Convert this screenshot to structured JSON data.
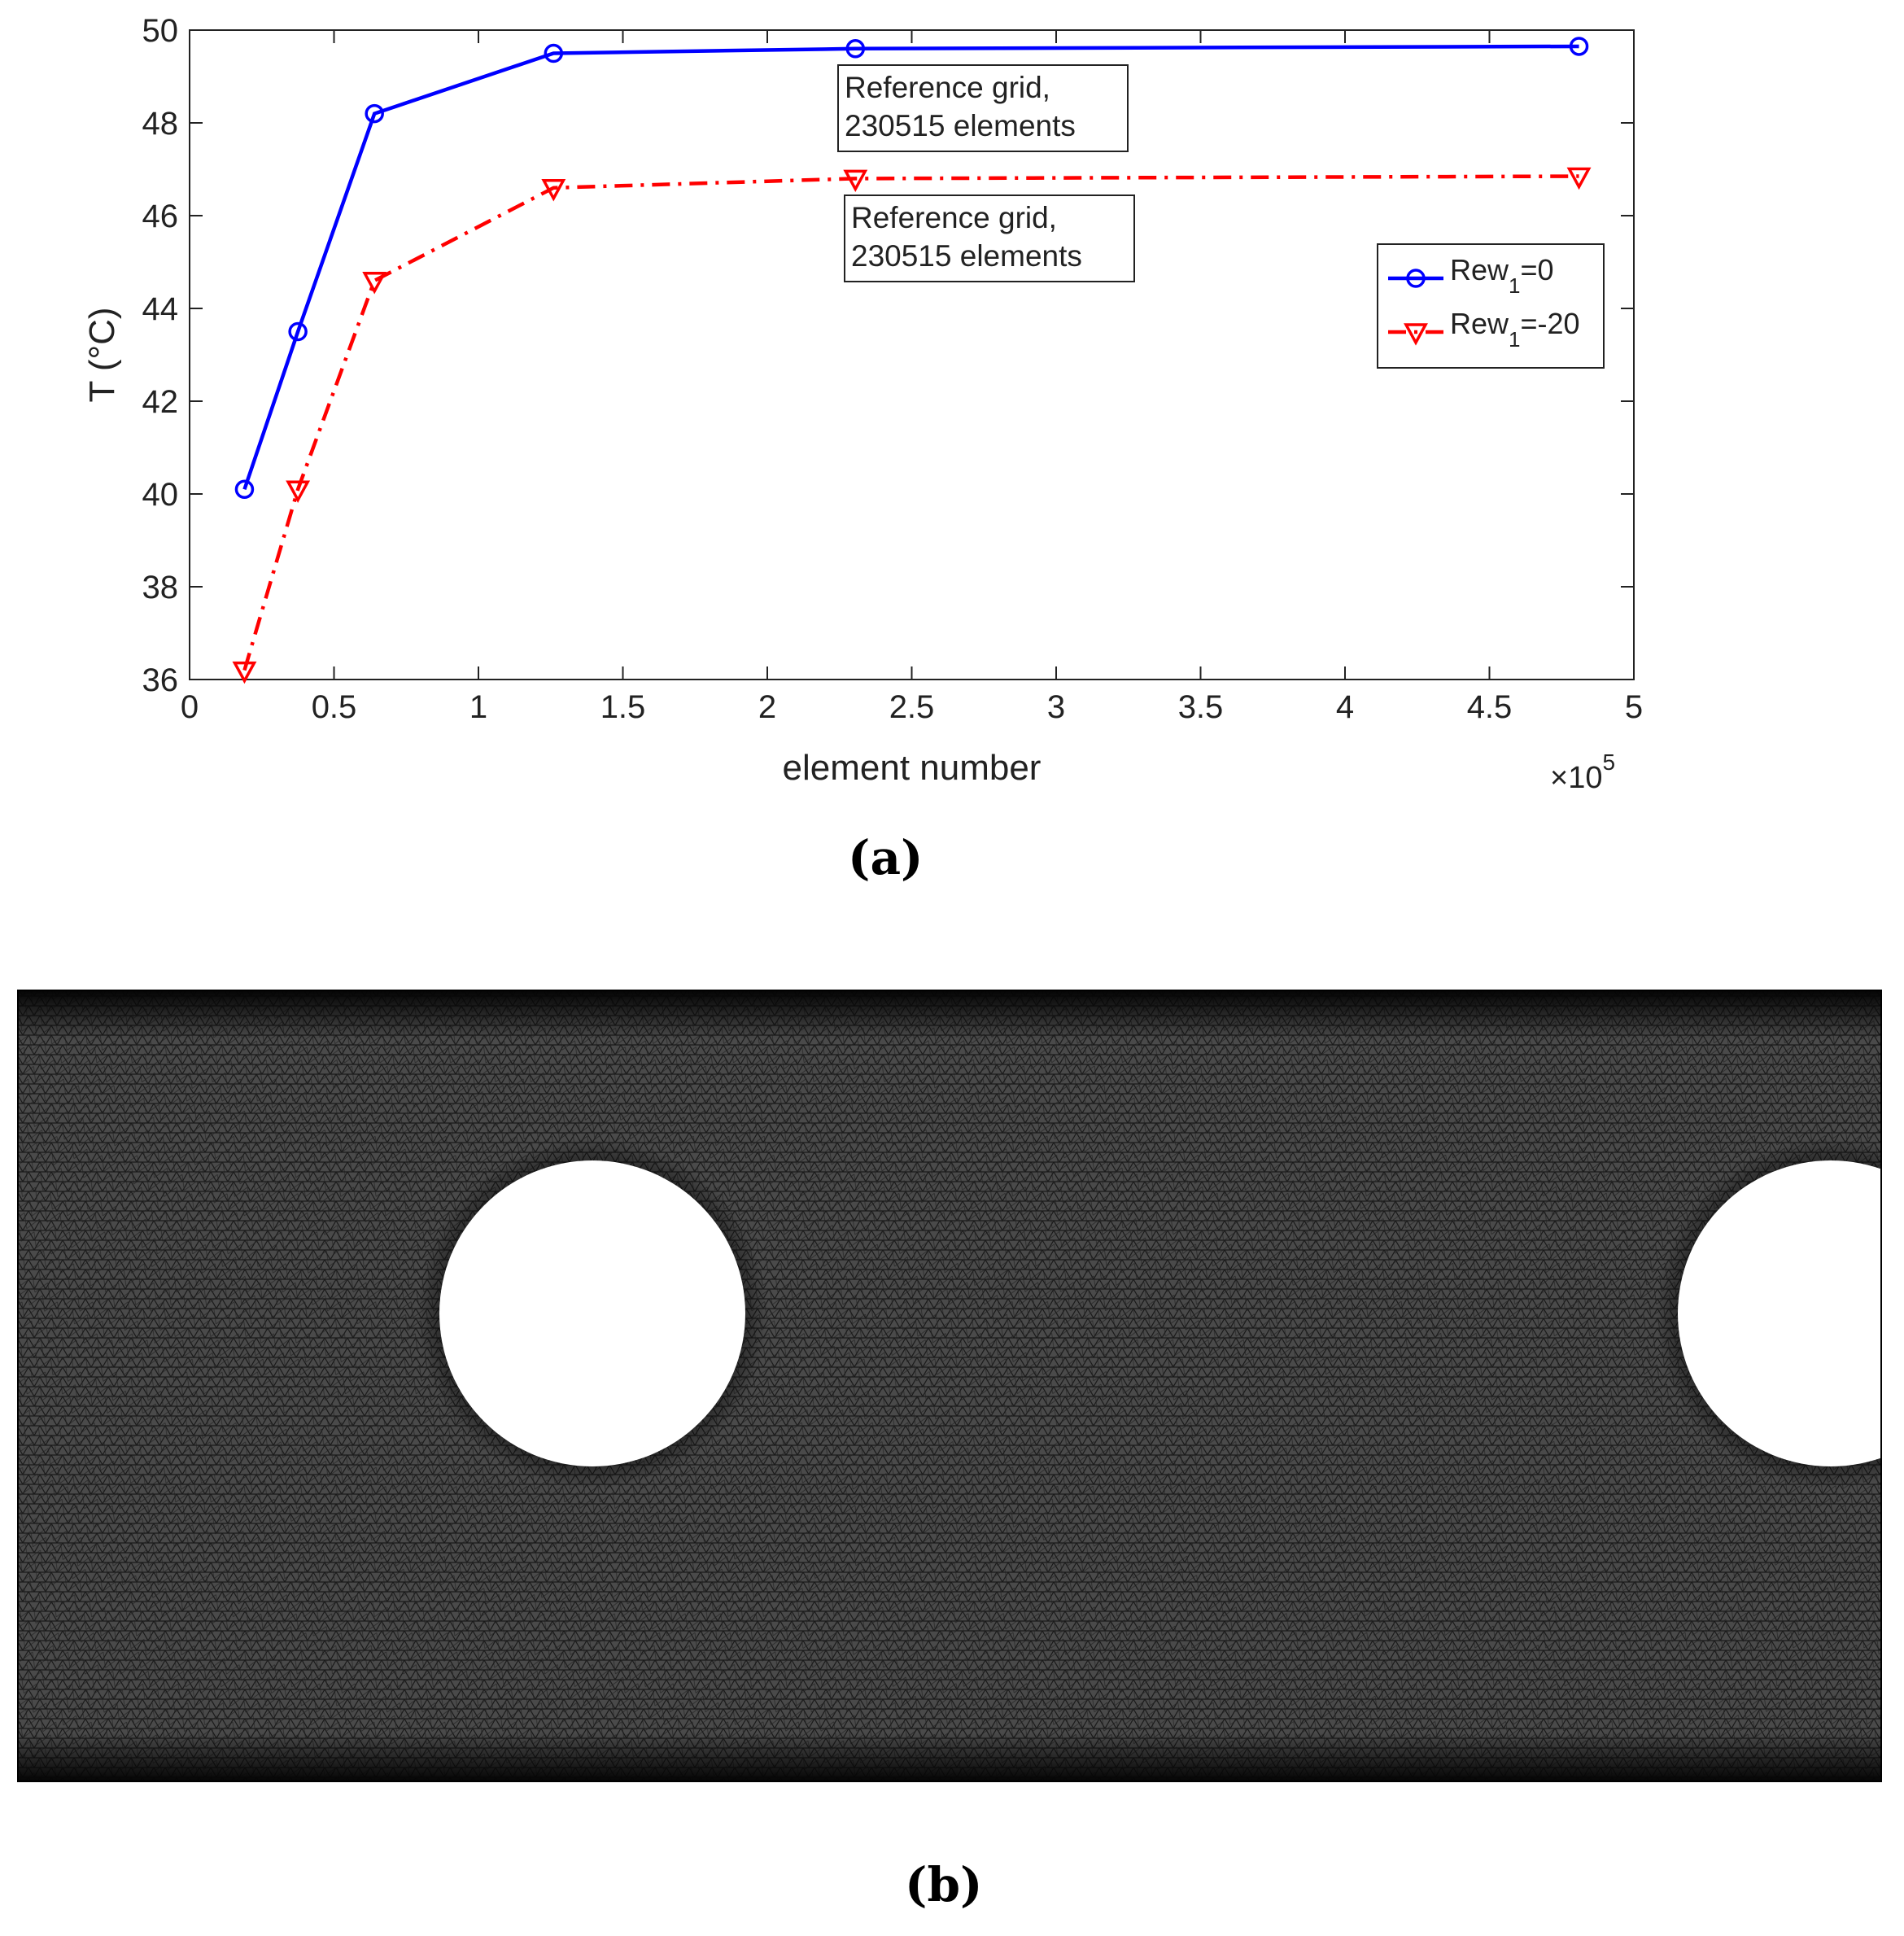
{
  "figure_a_label": "(a)",
  "figure_b_label": "(b)",
  "chart_data": {
    "type": "line",
    "title": "",
    "xlabel": "element number",
    "ylabel": "T (°C)",
    "x_exponent_label": "×10",
    "x_exponent_power": "5",
    "xlim": [
      0,
      5
    ],
    "ylim": [
      36,
      50
    ],
    "x_ticks": [
      0,
      0.5,
      1,
      1.5,
      2,
      2.5,
      3,
      3.5,
      4,
      4.5,
      5
    ],
    "x_tick_labels": [
      "0",
      "0.5",
      "1",
      "1.5",
      "2",
      "2.5",
      "3",
      "3.5",
      "4",
      "4.5",
      "5"
    ],
    "y_ticks": [
      36,
      38,
      40,
      42,
      44,
      46,
      48,
      50
    ],
    "y_tick_labels": [
      "36",
      "38",
      "40",
      "42",
      "44",
      "46",
      "48",
      "50"
    ],
    "grid": false,
    "legend_position": "right",
    "x": [
      0.19,
      0.375,
      0.64,
      1.26,
      2.305,
      4.81
    ],
    "series": [
      {
        "name_base": "Rew",
        "name_sub": "1",
        "name_rest": "=0",
        "color": "#0000ff",
        "marker": "circle",
        "line": "solid",
        "values": [
          40.1,
          43.5,
          48.2,
          49.5,
          49.6,
          49.65
        ]
      },
      {
        "name_base": "Rew",
        "name_sub": "1",
        "name_rest": "=-20",
        "color": "#ff0000",
        "marker": "triangle-down",
        "line": "dashdot",
        "values": [
          36.2,
          40.1,
          44.6,
          46.6,
          46.8,
          46.85
        ]
      }
    ],
    "annotations": [
      {
        "line1": "Reference grid,",
        "line2": "230515 elements",
        "series_index": 0
      },
      {
        "line1": "Reference grid,",
        "line2": "230515 elements",
        "series_index": 1
      }
    ]
  },
  "mesh_image": {
    "description_free": true,
    "mesh_fill": "#3a3a3a",
    "boundary_dark": "#0a0a0a",
    "hole_fill": "#ffffff"
  }
}
